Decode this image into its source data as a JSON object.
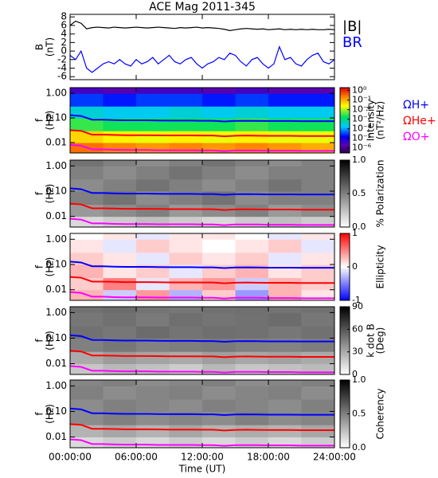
{
  "chart_data": [
    {
      "type": "line",
      "title": "ACE Mag 2011-345",
      "ylabel": [
        "B",
        "(nT)"
      ],
      "xlim": [
        0,
        24
      ],
      "ylim": [
        -6.7,
        8.6
      ],
      "yticks": [
        -6,
        -4,
        -2,
        0,
        2,
        4,
        6,
        8
      ],
      "x": [
        0,
        0.5,
        1,
        1.5,
        2,
        2.5,
        3,
        3.5,
        4,
        4.5,
        5,
        5.5,
        6,
        6.5,
        7,
        7.5,
        8,
        8.5,
        9,
        9.5,
        10,
        10.5,
        11,
        11.5,
        12,
        12.5,
        13,
        13.5,
        14,
        14.5,
        15,
        15.5,
        16,
        16.5,
        17,
        17.5,
        18,
        18.5,
        19,
        19.5,
        20,
        20.5,
        21,
        21.5,
        22,
        22.5,
        23,
        23.5,
        24
      ],
      "series": [
        {
          "name": "|B|",
          "color": "#000000",
          "values": [
            6,
            7,
            6.5,
            5.2,
            5.5,
            5.6,
            5.5,
            5.4,
            5.6,
            5.5,
            5.4,
            5.5,
            5.6,
            5.5,
            5.4,
            5.5,
            5.6,
            5.5,
            5.4,
            5.3,
            5.5,
            5.4,
            5.5,
            5.6,
            5.4,
            5.5,
            5.4,
            5.3,
            5.1,
            4.8,
            5,
            5.2,
            5.3,
            5.2,
            5.1,
            5.2,
            5,
            5.1,
            5.2,
            5,
            5.1,
            5,
            5.1,
            5,
            5.1,
            5,
            5,
            5.1,
            5
          ]
        },
        {
          "name": "BR",
          "color": "#0000ff",
          "values": [
            -1,
            -2,
            0,
            -4,
            -5,
            -4,
            -3,
            -2.5,
            -3,
            -2,
            -3,
            -3.5,
            -2,
            -3,
            -2.5,
            -1.5,
            -3,
            -2,
            -1,
            -2.5,
            -3,
            -2,
            -1.5,
            -3,
            -4,
            -3,
            -2.5,
            -1.5,
            -2,
            -0.5,
            -1,
            -2.5,
            -3.5,
            -2,
            -1.5,
            -3,
            -4,
            -3,
            1,
            -2,
            -1.5,
            -3,
            -3.5,
            -2,
            -1,
            -0.5,
            -2.5,
            -3,
            -2
          ]
        }
      ]
    },
    {
      "type": "spectrogram",
      "ylabel": [
        "f",
        "(Hz)"
      ],
      "log_y": true,
      "xlim": [
        0,
        24
      ],
      "ylim": [
        0.0038,
        1.7
      ],
      "yticks": [
        {
          "value": 1,
          "label": "1.00"
        },
        {
          "value": 0.1,
          "label": "0.10"
        },
        {
          "value": 0.01,
          "label": "0.01"
        }
      ],
      "tbins": [
        0,
        3,
        6,
        9,
        12,
        15,
        18,
        21,
        24
      ],
      "fbins": [
        0.0038,
        0.01,
        0.03,
        0.1,
        0.3,
        1,
        1.7
      ],
      "z": [
        [
          0.3,
          0.2,
          0.15,
          0.2,
          0.15,
          0.2,
          0.15,
          0.1
        ],
        [
          0.05,
          0.03,
          0.02,
          0.03,
          0.02,
          0.03,
          0.02,
          0.02
        ],
        [
          0.003,
          0.002,
          0.002,
          0.002,
          0.002,
          0.003,
          0.002,
          0.002
        ],
        [
          0.0003,
          0.0002,
          0.0002,
          0.0003,
          0.0002,
          0.0003,
          0.0002,
          0.0002
        ],
        [
          3e-05,
          2e-05,
          3e-05,
          3e-05,
          2e-05,
          3e-05,
          2e-05,
          2e-05
        ],
        [
          3e-06,
          2e-06,
          3e-06,
          3e-06,
          2e-06,
          3e-06,
          2e-06,
          2e-06
        ]
      ],
      "colormap": "rainbow",
      "clog": true,
      "clim": [
        3e-07,
        2
      ],
      "cticks": [
        {
          "value": 1,
          "label": "10⁰"
        },
        {
          "value": 0.1,
          "label": "10⁻¹"
        },
        {
          "value": 0.01,
          "label": "10⁻²"
        },
        {
          "value": 0.001,
          "label": "10⁻³"
        },
        {
          "value": 0.0001,
          "label": "10⁻⁴"
        },
        {
          "value": 1e-05,
          "label": "10⁻⁵"
        },
        {
          "value": 1e-06,
          "label": "10⁻⁶"
        }
      ],
      "clabel": [
        "Intensity",
        "(nT²/Hz)"
      ],
      "x": [
        0,
        1,
        2,
        3,
        4,
        5,
        6,
        7,
        8,
        9,
        10,
        11,
        12,
        13,
        14,
        15,
        16,
        17,
        18,
        19,
        20,
        21,
        22,
        23,
        24
      ],
      "series": [
        {
          "name": "ΩH+",
          "color": "#0000ff",
          "values": [
            0.13,
            0.12,
            0.085,
            0.085,
            0.082,
            0.08,
            0.08,
            0.08,
            0.079,
            0.078,
            0.078,
            0.078,
            0.077,
            0.077,
            0.072,
            0.076,
            0.077,
            0.076,
            0.075,
            0.075,
            0.075,
            0.074,
            0.074,
            0.074,
            0.074
          ]
        },
        {
          "name": "ΩHe+",
          "color": "#ff0000",
          "values": [
            0.032,
            0.03,
            0.021,
            0.021,
            0.0205,
            0.02,
            0.02,
            0.02,
            0.0198,
            0.0195,
            0.0195,
            0.0195,
            0.0193,
            0.0193,
            0.018,
            0.019,
            0.0193,
            0.019,
            0.0188,
            0.0188,
            0.0188,
            0.0185,
            0.0185,
            0.0185,
            0.0185
          ]
        },
        {
          "name": "ΩO+",
          "color": "#ff00ff",
          "values": [
            0.0081,
            0.0075,
            0.0053,
            0.0053,
            0.0051,
            0.005,
            0.005,
            0.005,
            0.0049,
            0.0049,
            0.0049,
            0.0049,
            0.0048,
            0.0048,
            0.0045,
            0.0048,
            0.0048,
            0.0048,
            0.0047,
            0.0047,
            0.0047,
            0.0046,
            0.0046,
            0.0046,
            0.0046
          ]
        }
      ]
    },
    {
      "type": "spectrogram",
      "ylabel": [
        "f",
        "(Hz)"
      ],
      "log_y": true,
      "xlim": [
        0,
        24
      ],
      "ylim": [
        0.0038,
        1.7
      ],
      "yticks": [
        {
          "value": 1,
          "label": "1.00"
        },
        {
          "value": 0.1,
          "label": "0.10"
        },
        {
          "value": 0.01,
          "label": "0.01"
        }
      ],
      "tbins": [
        0,
        3,
        6,
        9,
        12,
        15,
        18,
        21,
        24
      ],
      "fbins": [
        0.0038,
        0.01,
        0.03,
        0.1,
        0.3,
        1,
        1.7
      ],
      "z": [
        [
          0.15,
          0.2,
          0.25,
          0.2,
          0.15,
          0.2,
          0.25,
          0.2
        ],
        [
          0.4,
          0.45,
          0.5,
          0.4,
          0.45,
          0.5,
          0.4,
          0.45
        ],
        [
          0.5,
          0.55,
          0.45,
          0.5,
          0.55,
          0.45,
          0.5,
          0.5
        ],
        [
          0.45,
          0.5,
          0.55,
          0.5,
          0.45,
          0.5,
          0.55,
          0.5
        ],
        [
          0.5,
          0.45,
          0.5,
          0.55,
          0.5,
          0.45,
          0.5,
          0.5
        ],
        [
          0.55,
          0.5,
          0.45,
          0.5,
          0.55,
          0.5,
          0.45,
          0.5
        ]
      ],
      "colormap": "gray_r",
      "clim": [
        0,
        1
      ],
      "cticks": [
        {
          "value": 0,
          "label": "0.0"
        },
        0.5,
        {
          "value": 1,
          "label": "1.0"
        }
      ],
      "clabel": [
        "% Polarization"
      ]
    },
    {
      "type": "spectrogram",
      "ylabel": [
        "f",
        "(Hz)"
      ],
      "log_y": true,
      "xlim": [
        0,
        24
      ],
      "ylim": [
        0.0038,
        1.7
      ],
      "yticks": [
        {
          "value": 1,
          "label": "1.00"
        },
        {
          "value": 0.1,
          "label": "0.10"
        },
        {
          "value": 0.01,
          "label": "0.01"
        }
      ],
      "tbins": [
        0,
        3,
        6,
        9,
        12,
        15,
        18,
        21,
        24
      ],
      "fbins": [
        0.0038,
        0.01,
        0.03,
        0.1,
        0.3,
        1,
        1.7
      ],
      "z": [
        [
          0.3,
          -0.2,
          0.4,
          -0.3,
          0.2,
          -0.4,
          0.3,
          0.1
        ],
        [
          0.2,
          0.5,
          -0.1,
          0.3,
          0.4,
          -0.2,
          0.3,
          0.2
        ],
        [
          0.3,
          0.1,
          0.2,
          -0.1,
          0.2,
          0.3,
          0.1,
          0.2
        ],
        [
          0.2,
          0.1,
          -0.1,
          0.2,
          0.1,
          0.2,
          -0.1,
          0.1
        ],
        [
          0.1,
          -0.1,
          0.2,
          0.1,
          0,
          0.1,
          0.2,
          -0.1
        ],
        [
          0,
          0.1,
          -0.1,
          0.1,
          0.1,
          0,
          -0.1,
          0.1
        ]
      ],
      "colormap": "bwr",
      "clim": [
        -1,
        1
      ],
      "cticks": [
        -1,
        0,
        1
      ],
      "clabel": [
        "Ellipticity"
      ]
    },
    {
      "type": "spectrogram",
      "ylabel": [
        "f",
        "(Hz)"
      ],
      "log_y": true,
      "xlim": [
        0,
        24
      ],
      "ylim": [
        0.0038,
        1.7
      ],
      "yticks": [
        {
          "value": 1,
          "label": "1.00"
        },
        {
          "value": 0.1,
          "label": "0.10"
        },
        {
          "value": 0.01,
          "label": "0.01"
        }
      ],
      "tbins": [
        0,
        3,
        6,
        9,
        12,
        15,
        18,
        21,
        24
      ],
      "fbins": [
        0.0038,
        0.01,
        0.03,
        0.1,
        0.3,
        1,
        1.7
      ],
      "z": [
        [
          20,
          25,
          22,
          18,
          25,
          20,
          22,
          24
        ],
        [
          30,
          35,
          32,
          30,
          34,
          31,
          33,
          30
        ],
        [
          45,
          48,
          44,
          46,
          47,
          45,
          44,
          46
        ],
        [
          50,
          48,
          52,
          49,
          51,
          50,
          48,
          50
        ],
        [
          48,
          50,
          47,
          51,
          49,
          50,
          52,
          48
        ],
        [
          50,
          52,
          49,
          48,
          50,
          51,
          49,
          50
        ]
      ],
      "colormap": "gray_r",
      "clim": [
        0,
        90
      ],
      "cticks": [
        0,
        30,
        60,
        90
      ],
      "clabel": [
        "k dot B",
        "(Deg)"
      ]
    },
    {
      "type": "spectrogram",
      "ylabel": [
        "f",
        "(Hz)"
      ],
      "log_y": true,
      "xlim": [
        0,
        24
      ],
      "ylim": [
        0.0038,
        1.7
      ],
      "yticks": [
        {
          "value": 1,
          "label": "1.00"
        },
        {
          "value": 0.1,
          "label": "0.10"
        },
        {
          "value": 0.01,
          "label": "0.01"
        }
      ],
      "tbins": [
        0,
        3,
        6,
        9,
        12,
        15,
        18,
        21,
        24
      ],
      "fbins": [
        0.0038,
        0.01,
        0.03,
        0.1,
        0.3,
        1,
        1.7
      ],
      "z": [
        [
          0.15,
          0.2,
          0.15,
          0.2,
          0.15,
          0.2,
          0.15,
          0.2
        ],
        [
          0.3,
          0.35,
          0.3,
          0.35,
          0.3,
          0.32,
          0.3,
          0.35
        ],
        [
          0.45,
          0.5,
          0.45,
          0.48,
          0.45,
          0.5,
          0.45,
          0.48
        ],
        [
          0.45,
          0.5,
          0.48,
          0.45,
          0.5,
          0.48,
          0.45,
          0.5
        ],
        [
          0.5,
          0.45,
          0.48,
          0.5,
          0.45,
          0.48,
          0.5,
          0.45
        ],
        [
          0.48,
          0.5,
          0.45,
          0.48,
          0.5,
          0.45,
          0.48,
          0.5
        ]
      ],
      "colormap": "gray_r",
      "clim": [
        0,
        1
      ],
      "cticks": [
        {
          "value": 0,
          "label": "0.0"
        },
        0.5,
        {
          "value": 1,
          "label": "1.0"
        }
      ],
      "clabel": [
        "Coherency"
      ],
      "xlabel": "Time (UT)",
      "xticks": [
        {
          "value": 0,
          "label": "00:00:00"
        },
        {
          "value": 6,
          "label": "06:00:00"
        },
        {
          "value": 12,
          "label": "12:00:00"
        },
        {
          "value": 18,
          "label": "18:00:00"
        },
        {
          "value": 24,
          "label": "24:00:00"
        }
      ]
    }
  ]
}
